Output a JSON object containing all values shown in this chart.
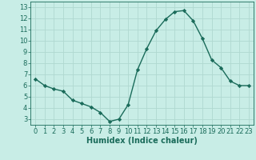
{
  "x": [
    0,
    1,
    2,
    3,
    4,
    5,
    6,
    7,
    8,
    9,
    10,
    11,
    12,
    13,
    14,
    15,
    16,
    17,
    18,
    19,
    20,
    21,
    22,
    23
  ],
  "y": [
    6.6,
    6.0,
    5.7,
    5.5,
    4.7,
    4.4,
    4.1,
    3.6,
    2.8,
    3.0,
    4.3,
    7.4,
    9.3,
    10.9,
    11.9,
    12.6,
    12.7,
    11.8,
    10.2,
    8.3,
    7.6,
    6.4,
    6.0,
    6.0
  ],
  "line_color": "#1a6b5a",
  "marker": "D",
  "marker_size": 2.2,
  "linewidth": 1.0,
  "xlabel": "Humidex (Indice chaleur)",
  "xlim": [
    -0.5,
    23.5
  ],
  "ylim": [
    2.5,
    13.5
  ],
  "yticks": [
    3,
    4,
    5,
    6,
    7,
    8,
    9,
    10,
    11,
    12,
    13
  ],
  "xticks": [
    0,
    1,
    2,
    3,
    4,
    5,
    6,
    7,
    8,
    9,
    10,
    11,
    12,
    13,
    14,
    15,
    16,
    17,
    18,
    19,
    20,
    21,
    22,
    23
  ],
  "bg_color": "#c8ede6",
  "grid_color": "#b0d8d0",
  "xlabel_fontsize": 7,
  "tick_fontsize": 6
}
